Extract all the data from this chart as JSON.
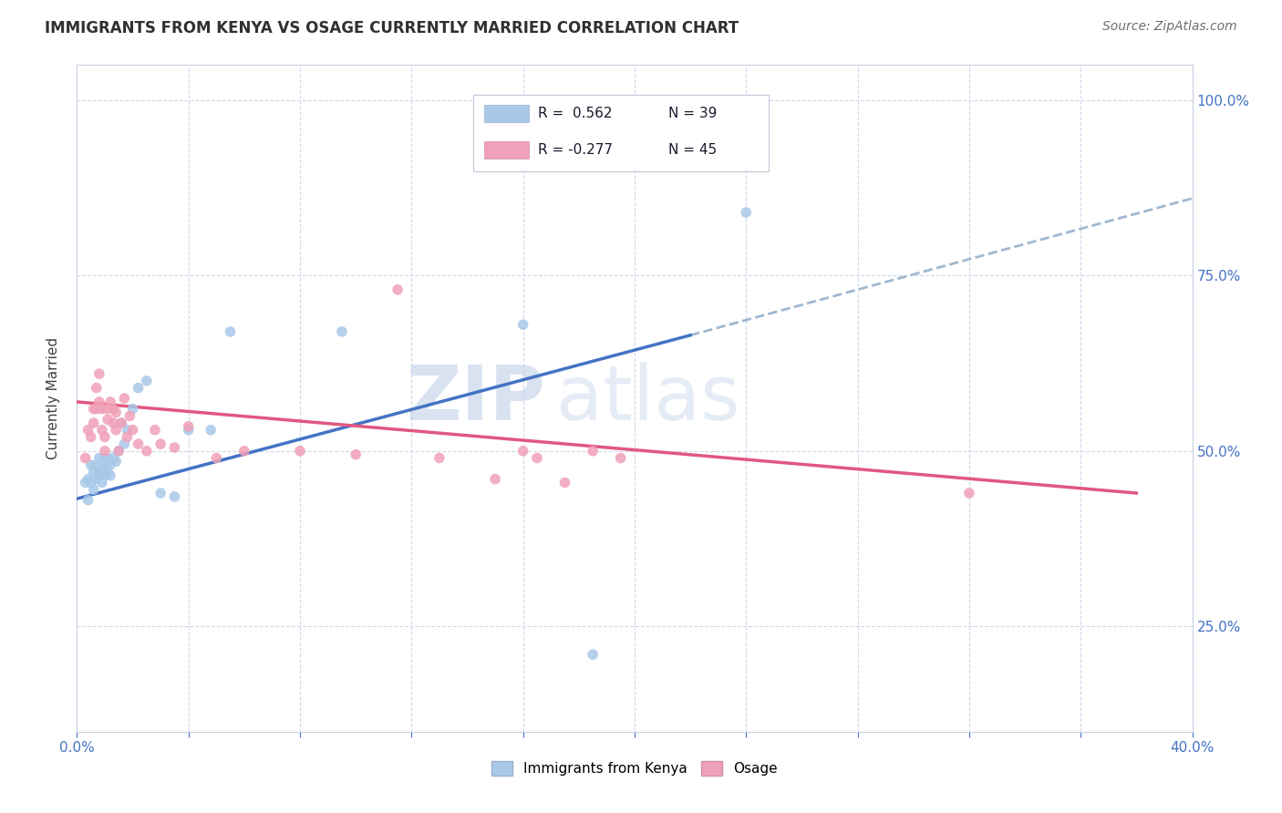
{
  "title": "IMMIGRANTS FROM KENYA VS OSAGE CURRENTLY MARRIED CORRELATION CHART",
  "source_text": "Source: ZipAtlas.com",
  "ylabel": "Currently Married",
  "xlim": [
    0.0,
    0.4
  ],
  "ylim": [
    0.1,
    1.05
  ],
  "x_ticks": [
    0.0,
    0.04,
    0.08,
    0.12,
    0.16,
    0.2,
    0.24,
    0.28,
    0.32,
    0.36,
    0.4
  ],
  "y_ticks": [
    0.25,
    0.5,
    0.75,
    1.0
  ],
  "y_tick_labels": [
    "25.0%",
    "50.0%",
    "75.0%",
    "100.0%"
  ],
  "legend_r1": "R =  0.562",
  "legend_n1": "N = 39",
  "legend_r2": "R = -0.277",
  "legend_n2": "N = 45",
  "color_kenya": "#a8c8e8",
  "color_osage": "#f0a0b8",
  "line_color_kenya": "#4472c4",
  "line_color_osage": "#e05880",
  "line_color_extra": "#a0b8d0",
  "watermark_zip": "ZIP",
  "watermark_atlas": "atlas",
  "kenya_points_x": [
    0.003,
    0.004,
    0.004,
    0.005,
    0.005,
    0.006,
    0.006,
    0.007,
    0.007,
    0.008,
    0.008,
    0.008,
    0.009,
    0.009,
    0.01,
    0.01,
    0.01,
    0.011,
    0.011,
    0.012,
    0.012,
    0.013,
    0.014,
    0.015,
    0.016,
    0.017,
    0.018,
    0.02,
    0.022,
    0.025,
    0.03,
    0.035,
    0.04,
    0.048,
    0.055,
    0.095,
    0.16,
    0.185,
    0.24
  ],
  "kenya_points_y": [
    0.455,
    0.43,
    0.46,
    0.48,
    0.455,
    0.445,
    0.47,
    0.48,
    0.46,
    0.47,
    0.465,
    0.49,
    0.475,
    0.455,
    0.49,
    0.48,
    0.465,
    0.49,
    0.47,
    0.48,
    0.465,
    0.49,
    0.485,
    0.5,
    0.54,
    0.51,
    0.53,
    0.56,
    0.59,
    0.6,
    0.44,
    0.435,
    0.53,
    0.53,
    0.67,
    0.67,
    0.68,
    0.21,
    0.84
  ],
  "osage_points_x": [
    0.003,
    0.004,
    0.005,
    0.006,
    0.006,
    0.007,
    0.007,
    0.008,
    0.008,
    0.009,
    0.009,
    0.01,
    0.01,
    0.011,
    0.011,
    0.012,
    0.013,
    0.013,
    0.014,
    0.014,
    0.015,
    0.016,
    0.017,
    0.018,
    0.019,
    0.02,
    0.022,
    0.025,
    0.028,
    0.03,
    0.035,
    0.04,
    0.05,
    0.06,
    0.08,
    0.1,
    0.115,
    0.13,
    0.15,
    0.16,
    0.165,
    0.175,
    0.185,
    0.195,
    0.32
  ],
  "osage_points_y": [
    0.49,
    0.53,
    0.52,
    0.56,
    0.54,
    0.59,
    0.56,
    0.61,
    0.57,
    0.53,
    0.56,
    0.52,
    0.5,
    0.545,
    0.56,
    0.57,
    0.54,
    0.56,
    0.53,
    0.555,
    0.5,
    0.54,
    0.575,
    0.52,
    0.55,
    0.53,
    0.51,
    0.5,
    0.53,
    0.51,
    0.505,
    0.535,
    0.49,
    0.5,
    0.5,
    0.495,
    0.73,
    0.49,
    0.46,
    0.5,
    0.49,
    0.455,
    0.5,
    0.49,
    0.44
  ],
  "kenya_trend_x": [
    0.0,
    0.22
  ],
  "kenya_trend_y": [
    0.432,
    0.665
  ],
  "osage_trend_x": [
    0.0,
    0.38
  ],
  "osage_trend_y": [
    0.57,
    0.44
  ],
  "extra_line_x": [
    0.22,
    0.4
  ],
  "extra_line_y": [
    0.665,
    0.86
  ]
}
